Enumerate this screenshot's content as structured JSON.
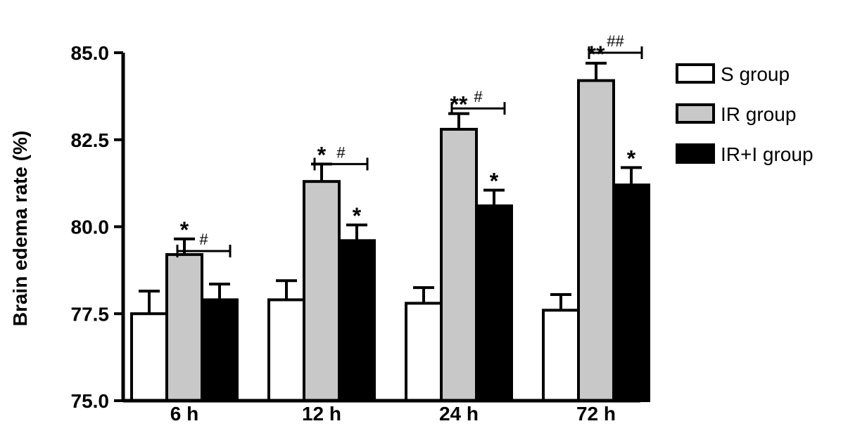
{
  "chart_data": {
    "type": "bar",
    "categories": [
      "6 h",
      "12 h",
      "24 h",
      "72 h"
    ],
    "ylabel": "Brain edema rate (%)",
    "ylim": [
      75.0,
      85.0
    ],
    "yticks": [
      "75.0",
      "77.5",
      "80.0",
      "82.5",
      "85.0"
    ],
    "legend_position": "right",
    "series": [
      {
        "name": "S group",
        "color": "#ffffff",
        "values": [
          77.5,
          77.9,
          77.8,
          77.6
        ],
        "errors": [
          0.65,
          0.55,
          0.45,
          0.45
        ],
        "marks": [
          "",
          "",
          "",
          ""
        ]
      },
      {
        "name": "IR group",
        "color": "#c8c8c8",
        "values": [
          79.2,
          81.3,
          82.8,
          84.2
        ],
        "errors": [
          0.45,
          0.5,
          0.45,
          0.5
        ],
        "marks": [
          "*",
          "*",
          "**",
          "**"
        ]
      },
      {
        "name": "IR+I group",
        "color": "#000000",
        "values": [
          77.9,
          79.6,
          80.6,
          81.2
        ],
        "errors": [
          0.45,
          0.45,
          0.45,
          0.5
        ],
        "marks": [
          "",
          "*",
          "*",
          "*"
        ]
      }
    ],
    "comparisons": [
      {
        "category": "6 h",
        "label": "#",
        "level": 79.3
      },
      {
        "category": "12 h",
        "label": "#",
        "level": 81.8
      },
      {
        "category": "24 h",
        "label": "#",
        "level": 83.4
      },
      {
        "category": "72 h",
        "label": "##",
        "level": 85.0
      }
    ]
  }
}
